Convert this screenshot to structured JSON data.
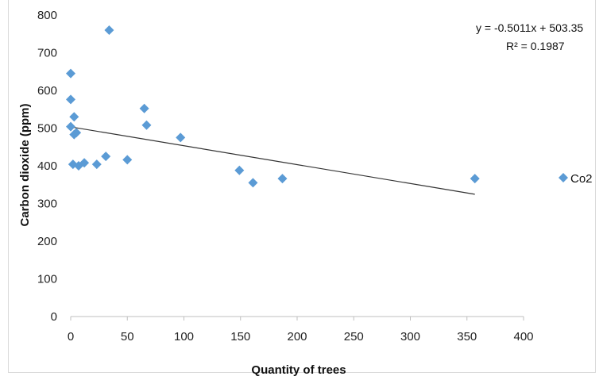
{
  "chart_data": {
    "type": "scatter",
    "xlabel": "Quantity of trees",
    "ylabel": "Carbon dioxide (ppm)",
    "xlim": [
      0,
      400
    ],
    "ylim": [
      0,
      800
    ],
    "x_ticks": [
      "0",
      "50",
      "100",
      "150",
      "200",
      "250",
      "300",
      "350",
      "400"
    ],
    "y_ticks": [
      "0",
      "100",
      "200",
      "300",
      "400",
      "500",
      "600",
      "700",
      "800"
    ],
    "grid": false,
    "legend_position": "right",
    "series": [
      {
        "name": "Co2",
        "color": "#5b9bd5",
        "marker": "diamond",
        "points": [
          {
            "x": 0,
            "y": 645
          },
          {
            "x": 0,
            "y": 576
          },
          {
            "x": 0,
            "y": 504
          },
          {
            "x": 2,
            "y": 404
          },
          {
            "x": 3,
            "y": 530
          },
          {
            "x": 3,
            "y": 483
          },
          {
            "x": 5,
            "y": 488
          },
          {
            "x": 7,
            "y": 400
          },
          {
            "x": 12,
            "y": 408
          },
          {
            "x": 23,
            "y": 404
          },
          {
            "x": 31,
            "y": 425
          },
          {
            "x": 34,
            "y": 760
          },
          {
            "x": 50,
            "y": 416
          },
          {
            "x": 65,
            "y": 552
          },
          {
            "x": 67,
            "y": 508
          },
          {
            "x": 97,
            "y": 475
          },
          {
            "x": 149,
            "y": 388
          },
          {
            "x": 161,
            "y": 355
          },
          {
            "x": 187,
            "y": 366
          },
          {
            "x": 357,
            "y": 366
          }
        ]
      }
    ],
    "trendline": {
      "type": "linear",
      "slope": -0.5011,
      "intercept": 503.35,
      "x_range": [
        0,
        357
      ],
      "color": "#333333",
      "equation": "y = -0.5011x + 503.35",
      "r_squared": "R² = 0.1987"
    }
  }
}
